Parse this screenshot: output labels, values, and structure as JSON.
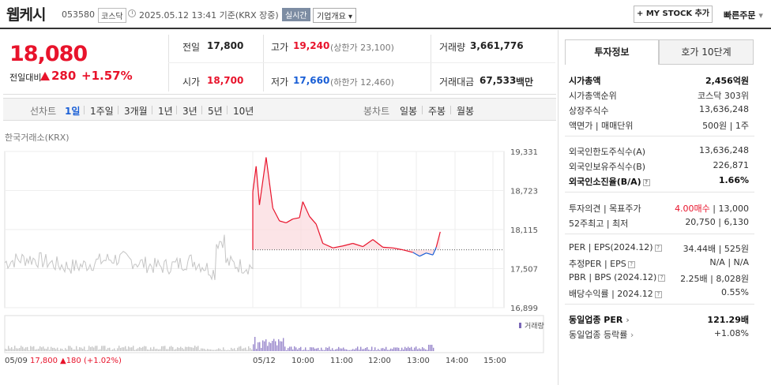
{
  "header": {
    "stock_name": "웹케시",
    "stock_code": "053580",
    "market": "코스닥",
    "timestamp": "2025.05.12 13:41 기준(KRX 장중)",
    "realtime_badge": "실시간",
    "overview_button": "기업개요",
    "mystock_button": "+ MY STOCK 추가",
    "quick_order": "빠른주문"
  },
  "summary": {
    "price": "18,080",
    "diff_label": "전일대비",
    "diff": "280",
    "diff_pct": "+1.57%",
    "prev_close_label": "전일",
    "prev_close": "17,800",
    "open_label": "시가",
    "open": "18,700",
    "high_label": "고가",
    "high": "19,240",
    "upper_limit": "(상한가 23,100)",
    "low_label": "저가",
    "low": "17,660",
    "lower_limit": "(하한가 12,460)",
    "volume_label": "거래량",
    "volume": "3,661,776",
    "amount_label": "거래대금",
    "amount": "67,533",
    "amount_unit": "백만"
  },
  "toolbar": {
    "line_chart": "선차트",
    "periods": [
      "1일",
      "1주일",
      "3개월",
      "1년",
      "3년",
      "5년",
      "10년"
    ],
    "selected_period": "1일",
    "candle_chart": "봉차트",
    "candles": [
      "일봉",
      "주봉",
      "월봉"
    ]
  },
  "chart": {
    "source": "한국거래소(KRX)",
    "volume_legend": "거래량",
    "footer_date": "05/09",
    "footer_price": "17,800",
    "footer_change": "▲180 (+1.02%)"
  },
  "chart_data": {
    "type": "line",
    "title": "",
    "ylim": [
      16899,
      19331
    ],
    "y_ticks": [
      "19,331",
      "18,723",
      "18,115",
      "17,507",
      "16,899"
    ],
    "x_ticks": [
      "05/12",
      "10:00",
      "11:00",
      "12:00",
      "13:00",
      "14:00",
      "15:00"
    ],
    "reference_price": 17800,
    "series": [
      {
        "name": "",
        "x": [
          "05/09",
          "05/12 09:00",
          "05/12 09:05",
          "05/12 09:10",
          "05/12 09:20",
          "05/12 09:30",
          "05/12 09:40",
          "05/12 09:50",
          "05/12 10:00",
          "05/12 10:10",
          "05/12 10:15",
          "05/12 10:25",
          "05/12 10:35",
          "05/12 10:45",
          "05/12 11:00",
          "05/12 11:15",
          "05/12 11:30",
          "05/12 11:45",
          "05/12 12:00",
          "05/12 12:15",
          "05/12 12:30",
          "05/12 12:45",
          "05/12 13:00",
          "05/12 13:10",
          "05/12 13:20",
          "05/12 13:30",
          "05/12 13:35",
          "05/12 13:41"
        ],
        "values": [
          17800,
          18700,
          19100,
          18500,
          19240,
          18450,
          18250,
          18220,
          18280,
          18300,
          18550,
          18320,
          18200,
          17900,
          17830,
          17860,
          17900,
          17850,
          17960,
          17840,
          17830,
          17800,
          17760,
          17700,
          17750,
          17720,
          17840,
          18080
        ]
      }
    ]
  },
  "right_panel": {
    "tabs": [
      "투자정보",
      "호가 10단계"
    ],
    "rows": [
      {
        "label": "시가총액",
        "value": "2,456억원"
      },
      {
        "label": "시가총액순위",
        "value": "코스닥 303위"
      },
      {
        "label": "상장주식수",
        "value": "13,636,248"
      },
      {
        "label": "액면가 | 매매단위",
        "value": "500원 | 1주"
      },
      {
        "label": "외국인한도주식수(A)",
        "value": "13,636,248"
      },
      {
        "label": "외국인보유주식수(B)",
        "value": "226,871"
      },
      {
        "label": "외국인소진율(B/A)",
        "value": "1.66%"
      },
      {
        "label": "투자의견 | 목표주가",
        "value_opinion": "4.00매수",
        "value_target": "13,000"
      },
      {
        "label": "52주최고 | 최저",
        "value": "20,750 | 6,130"
      },
      {
        "label": "PER | EPS(2024.12)",
        "value": "34.44배 | 525원"
      },
      {
        "label": "추정PER | EPS",
        "value": "N/A | N/A"
      },
      {
        "label": "PBR | BPS (2024.12)",
        "value": "2.25배 | 8,028원"
      },
      {
        "label": "배당수익률 | 2024.12",
        "value": "0.55%"
      },
      {
        "label": "동일업종 PER",
        "value": "121.29배"
      },
      {
        "label": "동일업종 등락률",
        "value": "+1.08%"
      }
    ]
  },
  "colors": {
    "up": "#e8132b",
    "down": "#1a5fd6",
    "chart_fill": "#fbd9dd"
  }
}
